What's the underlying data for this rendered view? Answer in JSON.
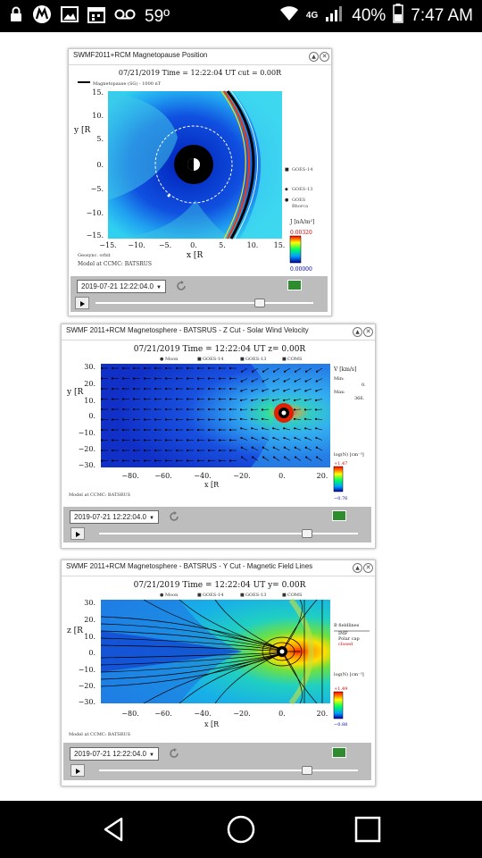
{
  "status_bar": {
    "temperature": "59º",
    "network": "4G",
    "battery": "40%",
    "time": "7:47 AM"
  },
  "panels": [
    {
      "title": "SWMF2011+RCM Magnetopause Position",
      "header": "07/21/2019 Time = 12:22:04 UT cut = 0.00R",
      "legend_top": "Magnetopause (SG) - 1000 nT",
      "y_label": "y [R",
      "x_label": "x [R",
      "y_ticks": [
        "15.",
        "10.",
        "5.",
        "0.",
        "−5.",
        "−10.",
        "−15."
      ],
      "x_ticks": [
        "−15.",
        "−10.",
        "−5.",
        "0.",
        "5.",
        "10.",
        "15."
      ],
      "markers": [
        "GOES-14",
        "GOES-13",
        "GOES",
        "Bhorca"
      ],
      "colorbar_title": "J [nA/m²]",
      "colorbar_max": "0.00320",
      "colorbar_min": "0.00000",
      "note1": "Geosync. orbit",
      "note2": "Model at CCMC: BATSRUS",
      "date": "2019-07-21 12:22:04.0",
      "slider_position": 0.75
    },
    {
      "title": "SWMF 2011+RCM Magnetosphere - BATSRUS - Z Cut - Solar Wind Velocity",
      "header": "07/21/2019 Time = 12:22:04 UT z= 0.00R",
      "legend": [
        "Moon",
        "GOES-14",
        "GOES-13",
        "COMS"
      ],
      "y_label": "y [R",
      "x_label": "x [R",
      "y_ticks": [
        "30.",
        "20.",
        "10.",
        "0.",
        "−10.",
        "−20.",
        "−30."
      ],
      "x_ticks": [
        "−80.",
        "−60.",
        "−40.",
        "−20.",
        "0.",
        "20."
      ],
      "side": [
        "V [km/s]",
        "Min:",
        "0.",
        "Max:",
        "366."
      ],
      "colorbar_title": "log(N) [cm⁻³]",
      "colorbar_max": "+1.47",
      "colorbar_min": "−0.76",
      "note": "Model at CCMC: BATSRUS",
      "date": "2019-07-21 12:22:04.0",
      "slider_position": 0.8
    },
    {
      "title": "SWMF 2011+RCM Magnetosphere - BATSRUS - Y Cut - Magnetic Field Lines",
      "header": "07/21/2019 Time = 12:22:04 UT y= 0.00R",
      "legend": [
        "Moon",
        "GOES-14",
        "GOES-13",
        "COMS"
      ],
      "y_label": "z [R",
      "x_label": "x [R",
      "y_ticks": [
        "30.",
        "20.",
        "10.",
        "0.",
        "−10.",
        "−20.",
        "−30."
      ],
      "x_ticks": [
        "−80.",
        "−60.",
        "−40.",
        "−20.",
        "0.",
        "20."
      ],
      "side": [
        "B fieldlines",
        "IMF",
        "Polar cap",
        "closed"
      ],
      "colorbar_title": "log(N) [cm⁻³]",
      "colorbar_max": "+1.49",
      "colorbar_min": "−0.88",
      "note": "Model at CCMC: BATSRUS",
      "date": "2019-07-21 12:22:04.0",
      "slider_position": 0.8
    }
  ],
  "colors": {
    "status_bg": "#000000",
    "nav_bg": "#000000",
    "control_bg": "#bdbdbd",
    "cold": "#1030c8",
    "hot": "#e02010",
    "background_plot": "#18c8e0"
  }
}
